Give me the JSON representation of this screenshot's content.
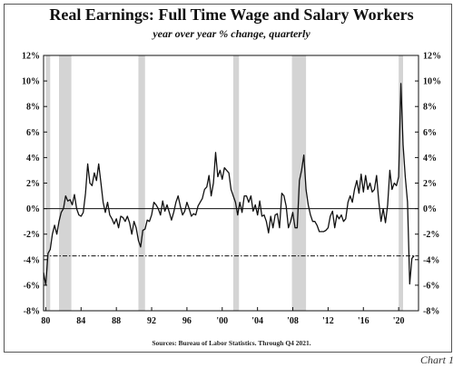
{
  "chart_data": {
    "type": "line",
    "title": "Real Earnings: Full Time Wage and Salary Workers",
    "subtitle": "year over year % change, quarterly",
    "source": "Sources: Bureau of Labor Statistics. Through Q4 2021.",
    "chart_label": "Chart 1",
    "xlabel": "",
    "ylabel": "",
    "xlim": [
      1979.75,
      2022.25
    ],
    "ylim": [
      -8,
      12
    ],
    "x_ticks": [
      {
        "value": 1980,
        "label": "80"
      },
      {
        "value": 1984,
        "label": "84"
      },
      {
        "value": 1988,
        "label": "88"
      },
      {
        "value": 1992,
        "label": "92"
      },
      {
        "value": 1996,
        "label": "96"
      },
      {
        "value": 2000,
        "label": "'00"
      },
      {
        "value": 2004,
        "label": "'04"
      },
      {
        "value": 2008,
        "label": "'08"
      },
      {
        "value": 2012,
        "label": "'12"
      },
      {
        "value": 2016,
        "label": "'16"
      },
      {
        "value": 2020,
        "label": "'20"
      }
    ],
    "y_ticks": [
      {
        "value": 12,
        "label": "12%"
      },
      {
        "value": 10,
        "label": "10%"
      },
      {
        "value": 8,
        "label": "8%"
      },
      {
        "value": 6,
        "label": "6%"
      },
      {
        "value": 4,
        "label": "4%"
      },
      {
        "value": 2,
        "label": "2%"
      },
      {
        "value": 0,
        "label": "0%"
      },
      {
        "value": -2,
        "label": "-2%"
      },
      {
        "value": -4,
        "label": "-4%"
      },
      {
        "value": -6,
        "label": "-6%"
      },
      {
        "value": -8,
        "label": "-8%"
      }
    ],
    "recessions": [
      [
        1980.0,
        1980.5
      ],
      [
        1981.5,
        1982.9
      ],
      [
        1990.5,
        1991.25
      ],
      [
        2001.25,
        2001.9
      ],
      [
        2007.9,
        2009.5
      ],
      [
        2020.0,
        2020.5
      ]
    ],
    "reference_lines": [
      {
        "y": 0,
        "style": "solid"
      },
      {
        "y": -3.7,
        "style": "dashdot"
      }
    ],
    "series": [
      {
        "values": [
          [
            1979.75,
            -5.0
          ],
          [
            1980.0,
            -6.0
          ],
          [
            1980.25,
            -3.5
          ],
          [
            1980.5,
            -3.2
          ],
          [
            1980.75,
            -2.0
          ],
          [
            1981.0,
            -1.3
          ],
          [
            1981.25,
            -2.0
          ],
          [
            1981.5,
            -1.0
          ],
          [
            1981.75,
            -0.3
          ],
          [
            1982.0,
            0.0
          ],
          [
            1982.25,
            1.0
          ],
          [
            1982.5,
            0.6
          ],
          [
            1982.75,
            0.7
          ],
          [
            1983.0,
            0.3
          ],
          [
            1983.25,
            1.1
          ],
          [
            1983.5,
            0.0
          ],
          [
            1983.75,
            -0.5
          ],
          [
            1984.0,
            -0.6
          ],
          [
            1984.25,
            -0.3
          ],
          [
            1984.5,
            1.2
          ],
          [
            1984.75,
            3.5
          ],
          [
            1985.0,
            2.0
          ],
          [
            1985.25,
            1.8
          ],
          [
            1985.5,
            2.8
          ],
          [
            1985.75,
            2.2
          ],
          [
            1986.0,
            3.5
          ],
          [
            1986.25,
            2.0
          ],
          [
            1986.5,
            0.5
          ],
          [
            1986.75,
            -0.3
          ],
          [
            1987.0,
            0.5
          ],
          [
            1987.25,
            -0.5
          ],
          [
            1987.5,
            -0.8
          ],
          [
            1987.75,
            -1.2
          ],
          [
            1988.0,
            -0.8
          ],
          [
            1988.25,
            -1.5
          ],
          [
            1988.5,
            -0.6
          ],
          [
            1988.75,
            -0.7
          ],
          [
            1989.0,
            -1.0
          ],
          [
            1989.25,
            -0.6
          ],
          [
            1989.5,
            -1.1
          ],
          [
            1989.75,
            -2.0
          ],
          [
            1990.0,
            -1.0
          ],
          [
            1990.25,
            -1.5
          ],
          [
            1990.5,
            -2.5
          ],
          [
            1990.75,
            -3.0
          ],
          [
            1991.0,
            -1.7
          ],
          [
            1991.25,
            -1.6
          ],
          [
            1991.5,
            -0.9
          ],
          [
            1991.75,
            -1.0
          ],
          [
            1992.0,
            -0.5
          ],
          [
            1992.25,
            0.5
          ],
          [
            1992.5,
            0.3
          ],
          [
            1992.75,
            0.0
          ],
          [
            1993.0,
            -0.5
          ],
          [
            1993.25,
            0.6
          ],
          [
            1993.5,
            -0.2
          ],
          [
            1993.75,
            0.3
          ],
          [
            1994.0,
            -0.3
          ],
          [
            1994.25,
            -0.9
          ],
          [
            1994.5,
            -0.3
          ],
          [
            1994.75,
            0.5
          ],
          [
            1995.0,
            1.0
          ],
          [
            1995.25,
            0.2
          ],
          [
            1995.5,
            -0.5
          ],
          [
            1995.75,
            -0.2
          ],
          [
            1996.0,
            0.5
          ],
          [
            1996.25,
            0.0
          ],
          [
            1996.5,
            -0.6
          ],
          [
            1996.75,
            -0.4
          ],
          [
            1997.0,
            -0.5
          ],
          [
            1997.25,
            0.2
          ],
          [
            1997.5,
            0.5
          ],
          [
            1997.75,
            0.8
          ],
          [
            1998.0,
            1.5
          ],
          [
            1998.25,
            1.7
          ],
          [
            1998.5,
            2.6
          ],
          [
            1998.75,
            1.0
          ],
          [
            1999.0,
            2.0
          ],
          [
            1999.25,
            4.4
          ],
          [
            1999.5,
            2.5
          ],
          [
            1999.75,
            3.0
          ],
          [
            2000.0,
            2.3
          ],
          [
            2000.25,
            3.2
          ],
          [
            2000.5,
            3.0
          ],
          [
            2000.75,
            2.8
          ],
          [
            2001.0,
            1.5
          ],
          [
            2001.25,
            1.0
          ],
          [
            2001.5,
            0.5
          ],
          [
            2001.75,
            -0.5
          ],
          [
            2002.0,
            0.5
          ],
          [
            2002.25,
            -0.3
          ],
          [
            2002.5,
            1.0
          ],
          [
            2002.75,
            1.0
          ],
          [
            2003.0,
            0.5
          ],
          [
            2003.25,
            1.0
          ],
          [
            2003.5,
            -0.2
          ],
          [
            2003.75,
            0.3
          ],
          [
            2004.0,
            -0.5
          ],
          [
            2004.25,
            0.6
          ],
          [
            2004.5,
            -0.6
          ],
          [
            2004.75,
            -0.5
          ],
          [
            2005.0,
            -1.0
          ],
          [
            2005.25,
            -1.9
          ],
          [
            2005.5,
            -0.6
          ],
          [
            2005.75,
            -1.5
          ],
          [
            2006.0,
            -0.5
          ],
          [
            2006.25,
            -0.4
          ],
          [
            2006.5,
            -1.5
          ],
          [
            2006.75,
            1.2
          ],
          [
            2007.0,
            1.0
          ],
          [
            2007.25,
            0.2
          ],
          [
            2007.5,
            -1.5
          ],
          [
            2007.75,
            -1.0
          ],
          [
            2008.0,
            -0.3
          ],
          [
            2008.25,
            -1.5
          ],
          [
            2008.5,
            -1.5
          ],
          [
            2008.75,
            2.2
          ],
          [
            2009.0,
            3.0
          ],
          [
            2009.25,
            4.2
          ],
          [
            2009.5,
            1.5
          ],
          [
            2009.75,
            0.3
          ],
          [
            2010.0,
            -0.5
          ],
          [
            2010.25,
            -1.0
          ],
          [
            2010.5,
            -1.0
          ],
          [
            2010.75,
            -1.3
          ],
          [
            2011.0,
            -1.8
          ],
          [
            2011.25,
            -1.8
          ],
          [
            2011.5,
            -1.8
          ],
          [
            2011.75,
            -1.7
          ],
          [
            2012.0,
            -1.5
          ],
          [
            2012.25,
            -0.6
          ],
          [
            2012.5,
            -0.2
          ],
          [
            2012.75,
            -1.5
          ],
          [
            2013.0,
            -0.5
          ],
          [
            2013.25,
            -0.8
          ],
          [
            2013.5,
            -0.5
          ],
          [
            2013.75,
            -1.0
          ],
          [
            2014.0,
            -0.8
          ],
          [
            2014.25,
            0.5
          ],
          [
            2014.5,
            1.0
          ],
          [
            2014.75,
            0.5
          ],
          [
            2015.0,
            1.5
          ],
          [
            2015.25,
            2.2
          ],
          [
            2015.5,
            1.2
          ],
          [
            2015.75,
            2.7
          ],
          [
            2016.0,
            1.3
          ],
          [
            2016.25,
            2.6
          ],
          [
            2016.5,
            1.5
          ],
          [
            2016.75,
            2.0
          ],
          [
            2017.0,
            1.3
          ],
          [
            2017.25,
            1.5
          ],
          [
            2017.5,
            2.6
          ],
          [
            2017.75,
            0.5
          ],
          [
            2018.0,
            -1.0
          ],
          [
            2018.25,
            0.0
          ],
          [
            2018.5,
            -1.1
          ],
          [
            2018.75,
            0.3
          ],
          [
            2019.0,
            3.0
          ],
          [
            2019.25,
            1.5
          ],
          [
            2019.5,
            2.0
          ],
          [
            2019.75,
            1.8
          ],
          [
            2020.0,
            2.5
          ],
          [
            2020.25,
            9.8
          ],
          [
            2020.5,
            5.0
          ],
          [
            2020.75,
            2.5
          ],
          [
            2021.0,
            0.5
          ],
          [
            2021.25,
            -5.9
          ],
          [
            2021.5,
            -3.9
          ],
          [
            2021.75,
            -3.7
          ]
        ]
      }
    ]
  }
}
